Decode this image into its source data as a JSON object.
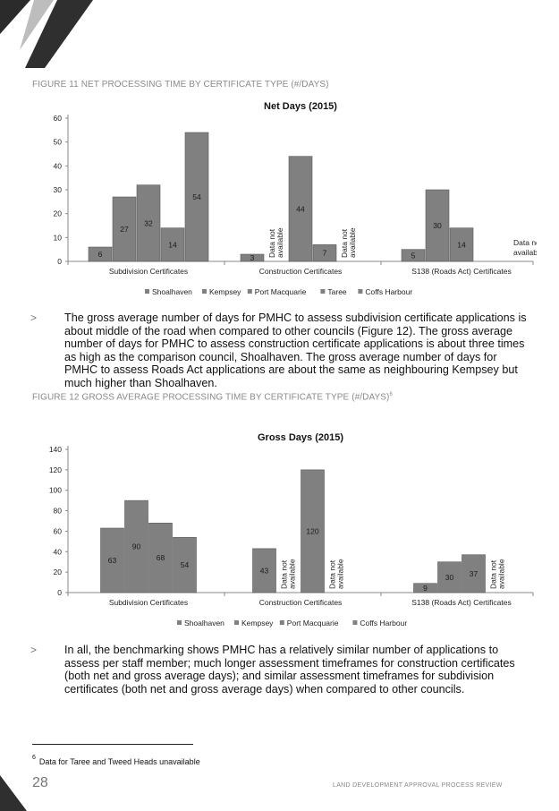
{
  "figure11": {
    "caption": "FIGURE 11 NET PROCESSING TIME BY CERTIFICATE TYPE (#/DAYS)"
  },
  "figure12": {
    "caption": "FIGURE 12 GROSS AVERAGE PROCESSING TIME BY CERTIFICATE TYPE (#/DAYS)",
    "footnote_ref": "6"
  },
  "bullets": [
    "The gross average number of days for PMHC to assess subdivision certificate applications is about middle of the road when compared to other councils (Figure 12). The gross average number of days for PMHC to assess construction certificate applications is about three times as high as the comparison council, Shoalhaven. The gross average number of days for PMHC to assess Roads Act applications are about the same as neighbouring Kempsey but much higher than Shoalhaven.",
    "In all, the benchmarking shows PMHC has a relatively similar number of applications to assess per staff member; much longer assessment timeframes for construction certificates (both net and gross average days); and similar assessment timeframes for subdivision certificates (both net and gross average days) when compared to other councils."
  ],
  "bullet_marker": ">",
  "footnote": {
    "number": "6",
    "text": "Data for Taree and Tweed Heads unavailable"
  },
  "page_number": "28",
  "running_title": "LAND DEVELOPMENT APPROVAL PROCESS REVIEW",
  "colors": {
    "bar": "#808080",
    "bar_stroke": "#5a5a5a",
    "axis": "#888888"
  },
  "chart_data": [
    {
      "type": "bar",
      "title": "Net Days (2015)",
      "categories": [
        "Subdivision Certificates",
        "Construction Certificates",
        "S138 (Roads Act) Certificates"
      ],
      "series": [
        {
          "name": "Shoalhaven",
          "values": [
            6,
            3,
            5
          ]
        },
        {
          "name": "Kempsey",
          "values": [
            27,
            null,
            30
          ]
        },
        {
          "name": "Port Macquarie",
          "values": [
            32,
            44,
            14
          ]
        },
        {
          "name": "Taree",
          "values": [
            14,
            7,
            null
          ]
        },
        {
          "name": "Coffs Harbour",
          "values": [
            54,
            null,
            null
          ]
        }
      ],
      "yticks": [
        0,
        10,
        20,
        30,
        40,
        50,
        60
      ],
      "ylim": [
        0,
        60
      ],
      "na_label": "Data not available",
      "na_positions": [
        {
          "category": 1,
          "series": 1
        },
        {
          "category": 1,
          "series": 4
        },
        {
          "category": 2,
          "series": 4
        }
      ],
      "legend_position": "bottom",
      "grid": false
    },
    {
      "type": "bar",
      "title": "Gross Days (2015)",
      "categories": [
        "Subdivision Certificates",
        "Construction Certificates",
        "S138 (Roads Act) Certificates"
      ],
      "series": [
        {
          "name": "Shoalhaven",
          "values": [
            63,
            43,
            9
          ]
        },
        {
          "name": "Kempsey",
          "values": [
            90,
            null,
            30
          ]
        },
        {
          "name": "Port Macquarie",
          "values": [
            68,
            120,
            37
          ]
        },
        {
          "name": "Coffs Harbour",
          "values": [
            54,
            null,
            null
          ]
        }
      ],
      "yticks": [
        0,
        20,
        40,
        60,
        80,
        100,
        120,
        140
      ],
      "ylim": [
        0,
        140
      ],
      "na_label": "Data not available",
      "na_positions": [
        {
          "category": 1,
          "series": 1
        },
        {
          "category": 1,
          "series": 3
        },
        {
          "category": 2,
          "series": 3
        }
      ],
      "legend_position": "bottom",
      "grid": false
    }
  ]
}
